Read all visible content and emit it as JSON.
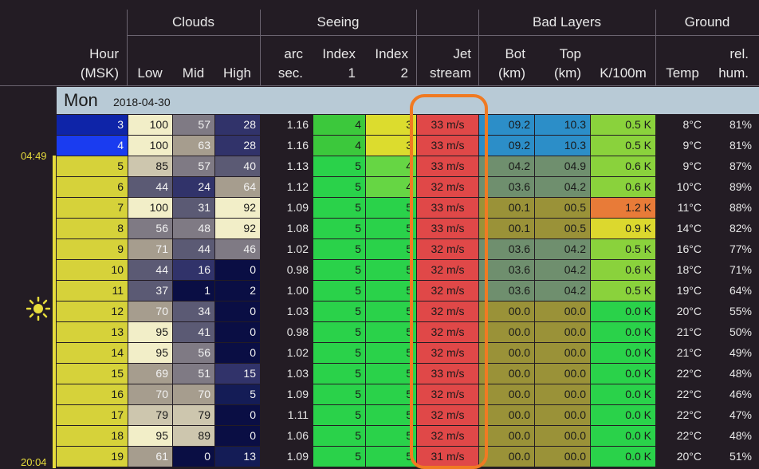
{
  "header": {
    "groups": {
      "clouds": "Clouds",
      "seeing": "Seeing",
      "bad_layers": "Bad Layers",
      "ground": "Ground"
    },
    "cols": {
      "hour": [
        "Hour",
        "(MSK)"
      ],
      "low": "Low",
      "mid": "Mid",
      "high": "High",
      "arc": [
        "arc",
        "sec."
      ],
      "index1": [
        "Index",
        "1"
      ],
      "index2": [
        "Index",
        "2"
      ],
      "jet": [
        "Jet",
        "stream"
      ],
      "bot": [
        "Bot",
        "(km)"
      ],
      "top": [
        "Top",
        "(km)"
      ],
      "k100m": "K/100m",
      "temp": "Temp",
      "hum": [
        "rel.",
        "hum."
      ]
    }
  },
  "day": {
    "name": "Mon",
    "date": "2018-04-30"
  },
  "sun": {
    "rise": "04:49",
    "set": "20:04",
    "icon": "sun-icon"
  },
  "rows": [
    {
      "hour": "3",
      "low": "100",
      "mid": "57",
      "high": "28",
      "arc": "1.16",
      "i1": "4",
      "i2": "3",
      "jet": "33 m/s",
      "bot": "09.2",
      "top": "10.3",
      "k": "0.5 K",
      "temp": "8°C",
      "hum": "81%"
    },
    {
      "hour": "4",
      "low": "100",
      "mid": "63",
      "high": "28",
      "arc": "1.16",
      "i1": "4",
      "i2": "3",
      "jet": "33 m/s",
      "bot": "09.2",
      "top": "10.3",
      "k": "0.5 K",
      "temp": "9°C",
      "hum": "81%"
    },
    {
      "hour": "5",
      "low": "85",
      "mid": "57",
      "high": "40",
      "arc": "1.13",
      "i1": "5",
      "i2": "4",
      "jet": "33 m/s",
      "bot": "04.2",
      "top": "04.9",
      "k": "0.6 K",
      "temp": "9°C",
      "hum": "87%"
    },
    {
      "hour": "6",
      "low": "44",
      "mid": "24",
      "high": "64",
      "arc": "1.12",
      "i1": "5",
      "i2": "4",
      "jet": "32 m/s",
      "bot": "03.6",
      "top": "04.2",
      "k": "0.6 K",
      "temp": "10°C",
      "hum": "89%"
    },
    {
      "hour": "7",
      "low": "100",
      "mid": "31",
      "high": "92",
      "arc": "1.09",
      "i1": "5",
      "i2": "5",
      "jet": "33 m/s",
      "bot": "00.1",
      "top": "00.5",
      "k": "1.2 K",
      "temp": "11°C",
      "hum": "88%"
    },
    {
      "hour": "8",
      "low": "56",
      "mid": "48",
      "high": "92",
      "arc": "1.08",
      "i1": "5",
      "i2": "5",
      "jet": "33 m/s",
      "bot": "00.1",
      "top": "00.5",
      "k": "0.9 K",
      "temp": "14°C",
      "hum": "82%"
    },
    {
      "hour": "9",
      "low": "71",
      "mid": "44",
      "high": "46",
      "arc": "1.02",
      "i1": "5",
      "i2": "5",
      "jet": "32 m/s",
      "bot": "03.6",
      "top": "04.2",
      "k": "0.5 K",
      "temp": "16°C",
      "hum": "77%"
    },
    {
      "hour": "10",
      "low": "44",
      "mid": "16",
      "high": "0",
      "arc": "0.98",
      "i1": "5",
      "i2": "5",
      "jet": "32 m/s",
      "bot": "03.6",
      "top": "04.2",
      "k": "0.6 K",
      "temp": "18°C",
      "hum": "71%"
    },
    {
      "hour": "11",
      "low": "37",
      "mid": "1",
      "high": "2",
      "arc": "1.00",
      "i1": "5",
      "i2": "5",
      "jet": "32 m/s",
      "bot": "03.6",
      "top": "04.2",
      "k": "0.5 K",
      "temp": "19°C",
      "hum": "64%"
    },
    {
      "hour": "12",
      "low": "70",
      "mid": "34",
      "high": "0",
      "arc": "1.03",
      "i1": "5",
      "i2": "5",
      "jet": "32 m/s",
      "bot": "00.0",
      "top": "00.0",
      "k": "0.0 K",
      "temp": "20°C",
      "hum": "55%"
    },
    {
      "hour": "13",
      "low": "95",
      "mid": "41",
      "high": "0",
      "arc": "0.98",
      "i1": "5",
      "i2": "5",
      "jet": "32 m/s",
      "bot": "00.0",
      "top": "00.0",
      "k": "0.0 K",
      "temp": "21°C",
      "hum": "50%"
    },
    {
      "hour": "14",
      "low": "95",
      "mid": "56",
      "high": "0",
      "arc": "1.02",
      "i1": "5",
      "i2": "5",
      "jet": "32 m/s",
      "bot": "00.0",
      "top": "00.0",
      "k": "0.0 K",
      "temp": "21°C",
      "hum": "49%"
    },
    {
      "hour": "15",
      "low": "69",
      "mid": "51",
      "high": "15",
      "arc": "1.03",
      "i1": "5",
      "i2": "5",
      "jet": "33 m/s",
      "bot": "00.0",
      "top": "00.0",
      "k": "0.0 K",
      "temp": "22°C",
      "hum": "48%"
    },
    {
      "hour": "16",
      "low": "70",
      "mid": "70",
      "high": "5",
      "arc": "1.09",
      "i1": "5",
      "i2": "5",
      "jet": "32 m/s",
      "bot": "00.0",
      "top": "00.0",
      "k": "0.0 K",
      "temp": "22°C",
      "hum": "46%"
    },
    {
      "hour": "17",
      "low": "79",
      "mid": "79",
      "high": "0",
      "arc": "1.11",
      "i1": "5",
      "i2": "5",
      "jet": "32 m/s",
      "bot": "00.0",
      "top": "00.0",
      "k": "0.0 K",
      "temp": "22°C",
      "hum": "47%"
    },
    {
      "hour": "18",
      "low": "95",
      "mid": "89",
      "high": "0",
      "arc": "1.06",
      "i1": "5",
      "i2": "5",
      "jet": "32 m/s",
      "bot": "00.0",
      "top": "00.0",
      "k": "0.0 K",
      "temp": "22°C",
      "hum": "48%"
    },
    {
      "hour": "19",
      "low": "61",
      "mid": "0",
      "high": "13",
      "arc": "1.09",
      "i1": "5",
      "i2": "5",
      "jet": "31 m/s",
      "bot": "00.0",
      "top": "00.0",
      "k": "0.0 K",
      "temp": "20°C",
      "hum": "51%"
    }
  ],
  "colors": {
    "hour_dark": "#0e24a8",
    "hour_blue": "#1a3cf0",
    "hour_day": "#d6d23a",
    "seeing_4": "#3cc83c",
    "seeing_5": "#2ad24a",
    "seeing_3_alt": "#dcdc2e",
    "jet": "#e04848",
    "highlight": "#f07a22",
    "header_bar": "#b8cad6",
    "sun": "#e6dc3c"
  }
}
